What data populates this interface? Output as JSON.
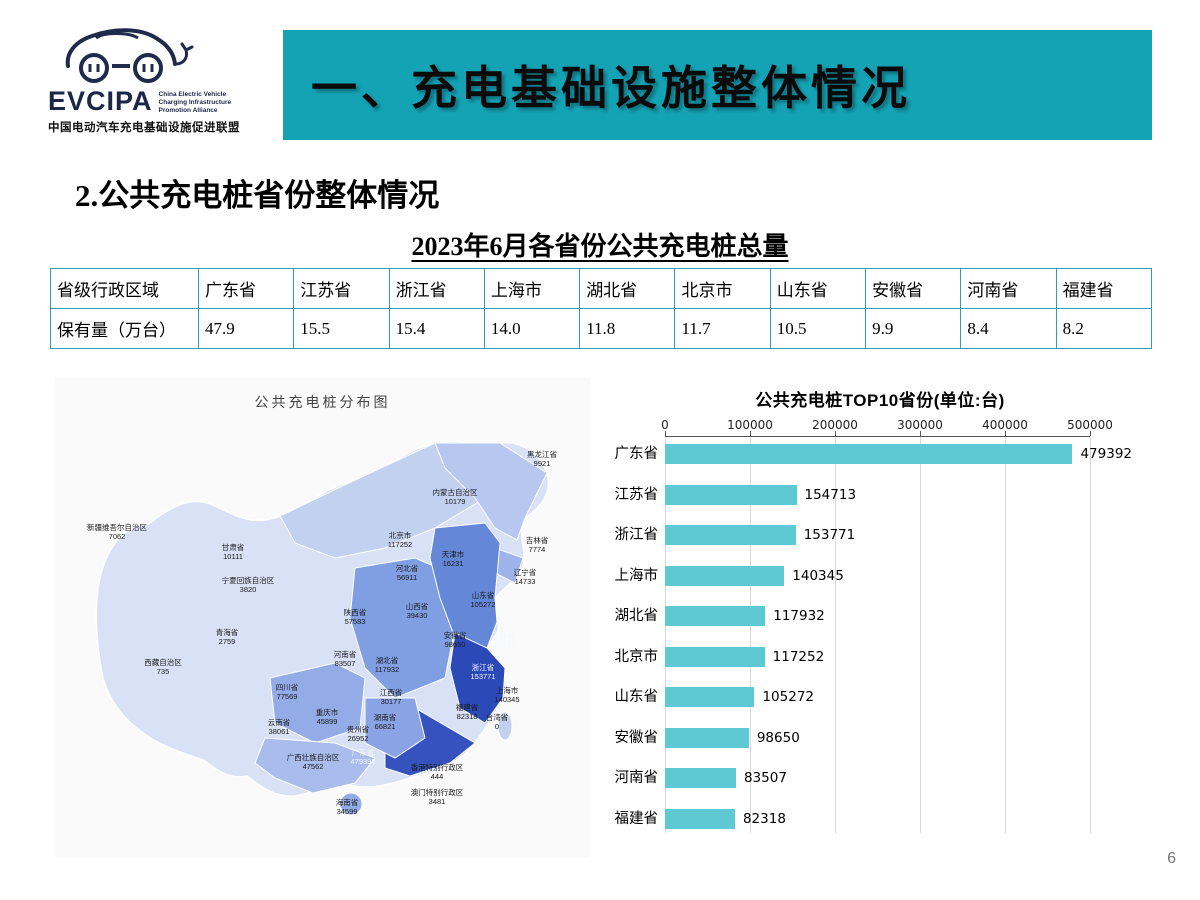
{
  "colors": {
    "banner_bg": "#14a3b5",
    "bar_color": "#5ec8d3",
    "table_border": "#2f9db5"
  },
  "logo": {
    "acronym": "EVCIPA",
    "tagline_en": "China Electric Vehicle\nCharging Infrastructure\nPromotion Alliance",
    "tagline_cn": "中国电动汽车充电基础设施促进联盟"
  },
  "header": {
    "title": "一、充电基础设施整体情况"
  },
  "section_title": "2.公共充电桩省份整体情况",
  "table": {
    "title": "2023年6月各省份公共充电桩总量",
    "row_header": "省级行政区域",
    "value_header": "保有量（万台）",
    "columns": [
      "广东省",
      "江苏省",
      "浙江省",
      "上海市",
      "湖北省",
      "北京市",
      "山东省",
      "安徽省",
      "河南省",
      "福建省"
    ],
    "values": [
      "47.9",
      "15.5",
      "15.4",
      "14.0",
      "11.8",
      "11.7",
      "10.5",
      "9.9",
      "8.4",
      "8.2"
    ]
  },
  "map": {
    "title": "公共充电桩分布图",
    "regions": [
      {
        "name": "黑龙江省",
        "value": "9921"
      },
      {
        "name": "内蒙古自治区",
        "value": "10179"
      },
      {
        "name": "新疆维吾尔自治区",
        "value": "7062"
      },
      {
        "name": "甘肃省",
        "value": "10111"
      },
      {
        "name": "北京市",
        "value": "117252"
      },
      {
        "name": "吉林省",
        "value": "7774"
      },
      {
        "name": "天津市",
        "value": "16231"
      },
      {
        "name": "河北省",
        "value": "56911"
      },
      {
        "name": "辽宁省",
        "value": "14733"
      },
      {
        "name": "宁夏回族自治区",
        "value": "3820"
      },
      {
        "name": "山东省",
        "value": "105272"
      },
      {
        "name": "山西省",
        "value": "39430"
      },
      {
        "name": "陕西省",
        "value": "57583"
      },
      {
        "name": "青海省",
        "value": "2759"
      },
      {
        "name": "安徽省",
        "value": "98650"
      },
      {
        "name": "江苏省",
        "value": "154713"
      },
      {
        "name": "西藏自治区",
        "value": "735"
      },
      {
        "name": "河南省",
        "value": "83507"
      },
      {
        "name": "湖北省",
        "value": "117932"
      },
      {
        "name": "浙江省",
        "value": "153771"
      },
      {
        "name": "四川省",
        "value": "77569"
      },
      {
        "name": "江西省",
        "value": "30177"
      },
      {
        "name": "上海市",
        "value": "140345"
      },
      {
        "name": "福建省",
        "value": "82318"
      },
      {
        "name": "重庆市",
        "value": "45899"
      },
      {
        "name": "湖南省",
        "value": "66821"
      },
      {
        "name": "贵州省",
        "value": "26952"
      },
      {
        "name": "台湾省",
        "value": "0"
      },
      {
        "name": "云南省",
        "value": "38061"
      },
      {
        "name": "广东省",
        "value": "479392"
      },
      {
        "name": "广西壮族自治区",
        "value": "47562"
      },
      {
        "name": "香港特别行政区",
        "value": "444"
      },
      {
        "name": "海南省",
        "value": "34599"
      },
      {
        "name": "澳门特别行政区",
        "value": "3481"
      }
    ]
  },
  "chart_data": {
    "type": "bar",
    "orientation": "horizontal",
    "title": "公共充电桩TOP10省份(单位:台)",
    "categories": [
      "广东省",
      "江苏省",
      "浙江省",
      "上海市",
      "湖北省",
      "北京市",
      "山东省",
      "安徽省",
      "河南省",
      "福建省"
    ],
    "values": [
      479392,
      154713,
      153771,
      140345,
      117932,
      117252,
      105272,
      98650,
      83507,
      82318
    ],
    "xlim": [
      0,
      500000
    ],
    "xticks": [
      0,
      100000,
      200000,
      300000,
      400000,
      500000
    ],
    "grid": true,
    "legend": "none",
    "bar_color": "#5ec8d3"
  },
  "page_number": "6"
}
